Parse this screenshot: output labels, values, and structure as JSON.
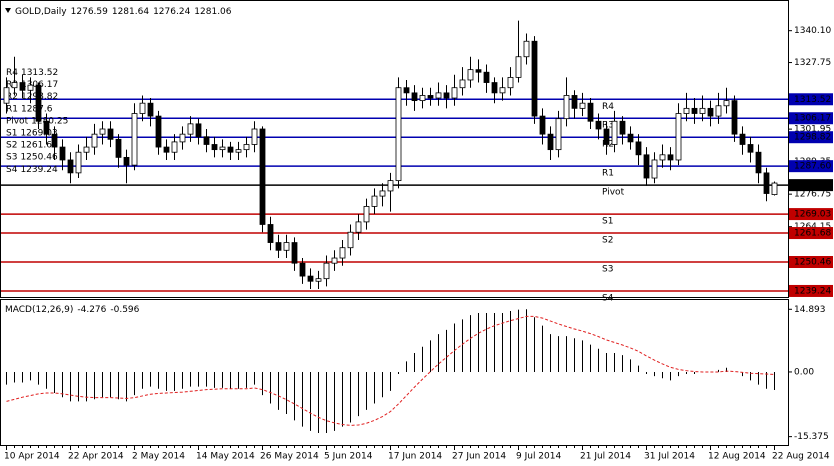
{
  "chart_data": [
    {
      "type": "candlestick",
      "title": "GOLD,Daily",
      "header_values": [
        1276.59,
        1281.64,
        1276.24,
        1281.06
      ],
      "x": [
        "10 Apr 2014",
        null,
        null,
        null,
        null,
        null,
        null,
        null,
        "22 Apr 2014",
        null,
        null,
        null,
        null,
        null,
        null,
        null,
        "2 May 2014",
        null,
        null,
        null,
        null,
        null,
        null,
        null,
        "14 May 2014",
        null,
        null,
        null,
        null,
        null,
        null,
        null,
        "26 May 2014",
        null,
        null,
        null,
        null,
        null,
        null,
        null,
        "5 Jun 2014",
        null,
        null,
        null,
        null,
        null,
        null,
        null,
        "17 Jun 2014",
        null,
        null,
        null,
        null,
        null,
        null,
        null,
        "27 Jun 2014",
        null,
        null,
        null,
        null,
        null,
        null,
        null,
        "9 Jul 2014",
        null,
        null,
        null,
        null,
        null,
        null,
        null,
        "21 Jul 2014",
        null,
        null,
        null,
        null,
        null,
        null,
        null,
        "31 Jul 2014",
        null,
        null,
        null,
        null,
        null,
        null,
        null,
        "12 Aug 2014",
        null,
        null,
        null,
        null,
        null,
        null,
        null,
        "22 Aug 2014"
      ],
      "open": [
        1312,
        1318,
        1320,
        1317,
        1319,
        1305,
        1300,
        1295,
        1290,
        1285,
        1293,
        1295,
        1300,
        1302,
        1298,
        1291,
        1288,
        1308,
        1312,
        1307,
        1295,
        1293,
        1297,
        1300,
        1304,
        1299,
        1296,
        1294,
        1295,
        1293,
        1294,
        1296,
        1302,
        1265,
        1258,
        1255,
        1258,
        1250,
        1245,
        1243,
        1244,
        1250,
        1252,
        1256,
        1262,
        1266,
        1272,
        1276,
        1278,
        1282,
        1318,
        1316,
        1313,
        1315,
        1314,
        1316,
        1314,
        1318,
        1321,
        1325,
        1324,
        1320,
        1316,
        1318,
        1322,
        1330,
        1336,
        1307,
        1300,
        1294,
        1306,
        1315,
        1310,
        1312,
        1305,
        1302,
        1296,
        1305,
        1300,
        1297,
        1292,
        1283,
        1290,
        1292,
        1290,
        1308,
        1310,
        1308,
        1310,
        1307,
        1311,
        1313,
        1300,
        1296,
        1293,
        1285,
        1276.59
      ],
      "high": [
        1322,
        1330,
        1323,
        1322,
        1320,
        1308,
        1303,
        1298,
        1293,
        1296,
        1299,
        1304,
        1305,
        1305,
        1300,
        1294,
        1312,
        1315,
        1314,
        1309,
        1298,
        1300,
        1303,
        1307,
        1306,
        1302,
        1299,
        1298,
        1297,
        1297,
        1299,
        1305,
        1303,
        1268,
        1261,
        1261,
        1260,
        1252,
        1248,
        1247,
        1253,
        1255,
        1259,
        1265,
        1269,
        1275,
        1279,
        1281,
        1285,
        1322,
        1321,
        1319,
        1318,
        1318,
        1320,
        1319,
        1323,
        1326,
        1330,
        1329,
        1327,
        1322,
        1322,
        1326,
        1344,
        1339,
        1338,
        1310,
        1303,
        1309,
        1322,
        1317,
        1316,
        1314,
        1308,
        1305,
        1309,
        1307,
        1303,
        1300,
        1295,
        1293,
        1296,
        1295,
        1312,
        1316,
        1314,
        1315,
        1313,
        1316,
        1318,
        1315,
        1303,
        1299,
        1296,
        1287,
        1281.64
      ],
      "low": [
        1308,
        1315,
        1314,
        1312,
        1302,
        1296,
        1290,
        1286,
        1281,
        1283,
        1290,
        1292,
        1296,
        1295,
        1287,
        1281,
        1286,
        1305,
        1303,
        1292,
        1290,
        1290,
        1294,
        1297,
        1296,
        1293,
        1291,
        1291,
        1290,
        1290,
        1291,
        1293,
        1262,
        1255,
        1252,
        1252,
        1247,
        1242,
        1240,
        1240,
        1241,
        1247,
        1249,
        1253,
        1259,
        1263,
        1269,
        1272,
        1270,
        1279,
        1311,
        1309,
        1310,
        1311,
        1311,
        1310,
        1311,
        1315,
        1318,
        1320,
        1316,
        1312,
        1313,
        1315,
        1320,
        1327,
        1304,
        1296,
        1290,
        1291,
        1303,
        1306,
        1307,
        1302,
        1298,
        1292,
        1293,
        1296,
        1294,
        1288,
        1280,
        1281,
        1287,
        1286,
        1288,
        1305,
        1304,
        1305,
        1303,
        1304,
        1308,
        1297,
        1292,
        1289,
        1281,
        1274,
        1276.24
      ],
      "close": [
        1318,
        1320,
        1317,
        1319,
        1305,
        1300,
        1295,
        1290,
        1285,
        1293,
        1295,
        1300,
        1302,
        1298,
        1291,
        1288,
        1308,
        1312,
        1307,
        1295,
        1293,
        1297,
        1300,
        1304,
        1299,
        1296,
        1294,
        1295,
        1293,
        1294,
        1296,
        1302,
        1265,
        1258,
        1255,
        1258,
        1250,
        1245,
        1243,
        1244,
        1250,
        1252,
        1256,
        1262,
        1266,
        1272,
        1276,
        1278,
        1282,
        1318,
        1316,
        1313,
        1315,
        1314,
        1316,
        1314,
        1318,
        1321,
        1325,
        1324,
        1320,
        1316,
        1318,
        1322,
        1330,
        1336,
        1307,
        1300,
        1294,
        1306,
        1315,
        1310,
        1312,
        1305,
        1302,
        1296,
        1305,
        1300,
        1297,
        1292,
        1283,
        1290,
        1292,
        1290,
        1308,
        1310,
        1308,
        1310,
        1307,
        1311,
        1313,
        1300,
        1296,
        1293,
        1285,
        1277,
        1281.06
      ],
      "up_color": "#ffffff",
      "down_color": "#000000",
      "ylim": [
        1236.9,
        1351.6
      ],
      "yticks": [
        {
          "value": 1340.1,
          "label": "1340.10"
        },
        1327.75,
        1301.95,
        1289.35,
        1276.75,
        1264.15
      ],
      "levels": [
        {
          "name": "R4",
          "value": 1313.52,
          "color": "#0000b0"
        },
        {
          "name": "R3",
          "value": 1306.17,
          "color": "#0000b0"
        },
        {
          "name": "R2",
          "value": 1298.82,
          "color": "#0000b0"
        },
        {
          "name": "R1",
          "value": 1287.6,
          "axis_label": "1287.60",
          "color": "#0000b0"
        },
        {
          "name": "Pivot",
          "value": 1280.25,
          "color": "#000000"
        },
        {
          "name": "S1",
          "value": 1269.03,
          "color": "#c00000"
        },
        {
          "name": "S2",
          "value": 1261.68,
          "color": "#c00000"
        },
        {
          "name": "S3",
          "value": 1250.46,
          "color": "#c00000"
        },
        {
          "name": "S4",
          "value": 1239.24,
          "color": "#c00000"
        }
      ]
    },
    {
      "type": "macd",
      "title": "MACD(12,26,9)",
      "header_values": [
        -4.276,
        -0.596
      ],
      "series": [
        {
          "style": "histogram",
          "color": "#000000",
          "values": [
            -3,
            -2.5,
            -2.5,
            -2,
            -3,
            -4,
            -5,
            -6,
            -7,
            -7,
            -7,
            -6.5,
            -6,
            -6,
            -6.5,
            -7,
            -5.5,
            -4,
            -3.5,
            -4,
            -4.5,
            -4.5,
            -4,
            -3.5,
            -3.5,
            -3.5,
            -3.8,
            -3.8,
            -4,
            -4,
            -3.8,
            -3,
            -5.5,
            -7.5,
            -9,
            -10,
            -11.5,
            -13,
            -14,
            -14.5,
            -14.5,
            -14,
            -13,
            -12,
            -10.5,
            -9,
            -7.5,
            -6,
            -4.5,
            -0.5,
            2.5,
            4.5,
            6,
            7.5,
            9,
            10,
            11.5,
            12.5,
            13.5,
            14,
            14,
            14,
            14,
            14.5,
            14.8,
            14.9,
            13,
            11,
            9,
            8.5,
            8.5,
            8,
            7.5,
            6.5,
            5.5,
            4.5,
            4.5,
            4,
            3,
            1.5,
            -0.5,
            -1,
            -1.5,
            -2,
            -1,
            -0.5,
            -0.5,
            0,
            0,
            0.5,
            1,
            0,
            -1,
            -2,
            -3,
            -4,
            -4.276
          ]
        },
        {
          "style": "dashed-line",
          "color": "#e02020",
          "values": [
            -7,
            -6.5,
            -6,
            -5.6,
            -5.2,
            -5,
            -5,
            -5.2,
            -5.5,
            -5.8,
            -6,
            -6.1,
            -6.1,
            -6.1,
            -6.2,
            -6.3,
            -6.1,
            -5.7,
            -5.3,
            -5.1,
            -5,
            -4.9,
            -4.8,
            -4.6,
            -4.4,
            -4.2,
            -4.1,
            -4,
            -4,
            -4,
            -4,
            -3.8,
            -4.2,
            -4.9,
            -5.7,
            -6.6,
            -7.6,
            -8.7,
            -9.8,
            -10.8,
            -11.6,
            -12.1,
            -12.5,
            -12.7,
            -12.6,
            -12.2,
            -11.5,
            -10.6,
            -9.4,
            -7.6,
            -5.6,
            -3.6,
            -1.7,
            0.1,
            1.9,
            3.5,
            5.1,
            6.6,
            8,
            9.2,
            10.2,
            11,
            11.6,
            12.2,
            12.7,
            13.2,
            13.2,
            12.8,
            12.1,
            11.4,
            10.8,
            10.2,
            9.7,
            9.1,
            8.4,
            7.6,
            7,
            6.4,
            5.7,
            4.9,
            3.8,
            2.8,
            1.9,
            1.1,
            0.6,
            0.3,
            0.1,
            0,
            0,
            0,
            0.2,
            0.1,
            -0.1,
            -0.3,
            -0.4,
            -0.5,
            -0.596
          ]
        }
      ],
      "ylim": [
        -17.6,
        17.1
      ],
      "yticks": [
        14.893,
        {
          "value": 0,
          "label": "0.00"
        },
        -15.375
      ]
    }
  ]
}
